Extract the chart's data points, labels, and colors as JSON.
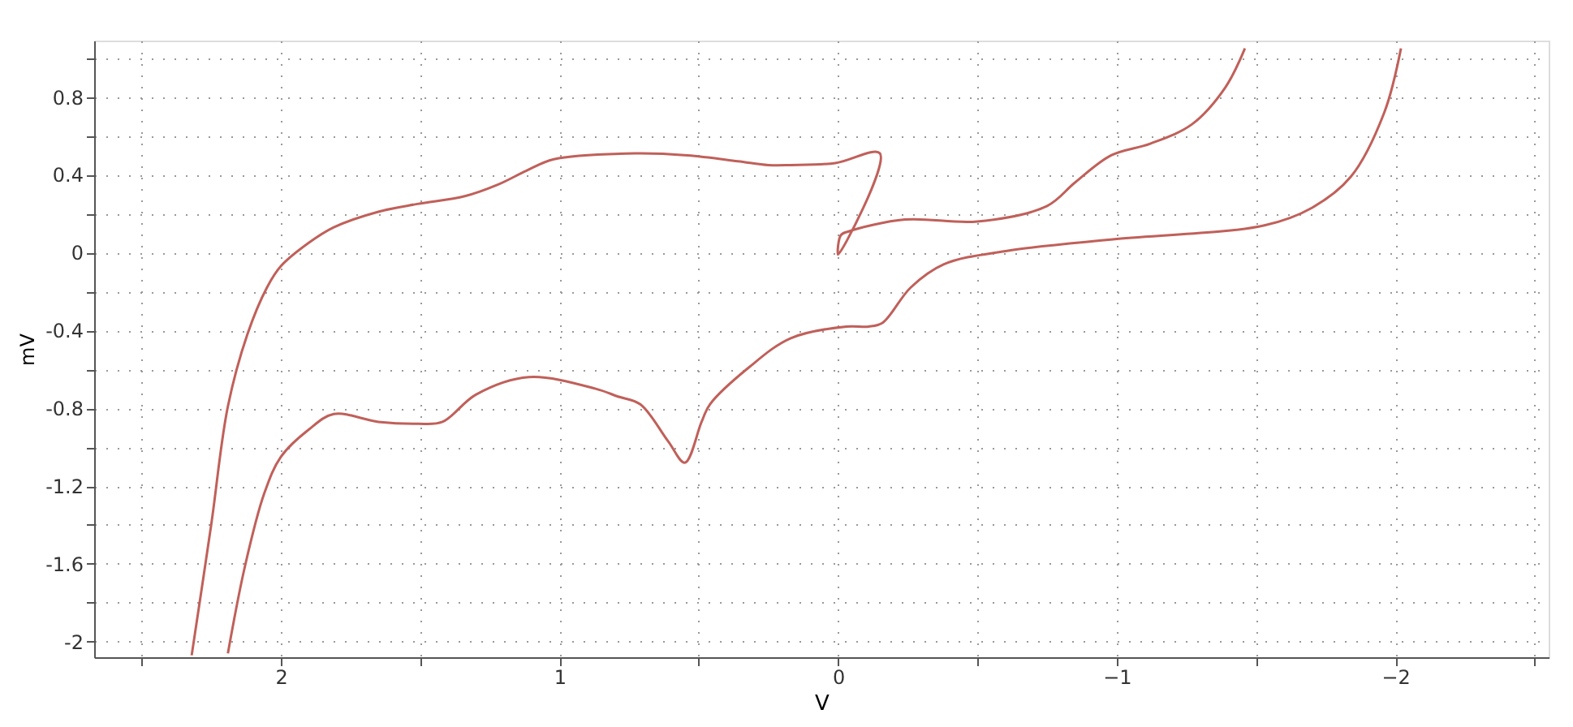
{
  "chart_data": {
    "type": "line",
    "xlabel": "V",
    "ylabel": "mV",
    "xlim": [
      2.67,
      -2.55
    ],
    "ylim": [
      -2.08,
      1.09
    ],
    "xticks": [
      {
        "value": 2.5,
        "label": null
      },
      2,
      {
        "value": 1.5,
        "label": null
      },
      1,
      {
        "value": 0.5,
        "label": null
      },
      0,
      {
        "value": -0.5,
        "label": null
      },
      {
        "value": -1,
        "label": "−1"
      },
      {
        "value": -1.5,
        "label": null
      },
      {
        "value": -2,
        "label": "−2"
      },
      {
        "value": -2.5,
        "label": null
      }
    ],
    "yticks": [
      -2,
      {
        "value": -1.8,
        "label": null
      },
      -1.6,
      {
        "value": -1.4,
        "label": null
      },
      -1.2,
      {
        "value": -1.0,
        "label": null
      },
      -0.8,
      {
        "value": -0.6,
        "label": null
      },
      -0.4,
      {
        "value": -0.2,
        "label": null
      },
      0,
      {
        "value": 0.2,
        "label": null
      },
      0.4,
      {
        "value": 0.6,
        "label": null
      },
      0.8,
      {
        "value": 1.0,
        "label": null
      }
    ],
    "grid": true,
    "marker": "none",
    "line_style": "solid",
    "series": [
      {
        "color": "#c0605a",
        "x": [
          2.32,
          2.25,
          2.19,
          2.12,
          2.05,
          2.0,
          1.9,
          1.81,
          1.65,
          1.51,
          1.34,
          1.22,
          1.12,
          1.02,
          0.73,
          0.54,
          0.36,
          0.25,
          0.17,
          0.01,
          -0.15,
          0.0,
          -0.01,
          -0.04,
          -0.24,
          -0.5,
          -0.75,
          -0.85,
          -0.98,
          -1.12,
          -1.27,
          -1.39,
          -1.46
        ],
        "values": [
          -2.07,
          -1.4,
          -0.79,
          -0.42,
          -0.18,
          -0.07,
          0.05,
          0.13,
          0.21,
          0.25,
          0.29,
          0.35,
          0.42,
          0.48,
          0.51,
          0.5,
          0.47,
          0.45,
          0.45,
          0.46,
          0.51,
          -0.01,
          0.09,
          0.11,
          0.17,
          0.16,
          0.24,
          0.36,
          0.5,
          0.56,
          0.66,
          0.85,
          1.05
        ]
      },
      {
        "color": "#c0605a",
        "x": [
          -2.02,
          -1.96,
          -1.84,
          -1.7,
          -1.53,
          -1.0,
          -0.61,
          -0.38,
          -0.26,
          -0.16,
          -0.11,
          -0.03,
          0.17,
          0.32,
          0.46,
          0.49,
          0.55,
          0.61,
          0.71,
          0.79,
          0.87,
          1.11,
          1.3,
          1.42,
          1.51,
          1.65,
          1.81,
          1.9,
          2.0,
          2.06,
          2.13,
          2.19
        ],
        "values": [
          1.05,
          0.72,
          0.39,
          0.23,
          0.14,
          0.07,
          0.01,
          -0.06,
          -0.18,
          -0.36,
          -0.38,
          -0.38,
          -0.44,
          -0.59,
          -0.78,
          -0.87,
          -1.08,
          -0.97,
          -0.78,
          -0.74,
          -0.7,
          -0.64,
          -0.73,
          -0.87,
          -0.88,
          -0.87,
          -0.83,
          -0.91,
          -1.05,
          -1.24,
          -1.62,
          -2.06
        ]
      }
    ]
  }
}
